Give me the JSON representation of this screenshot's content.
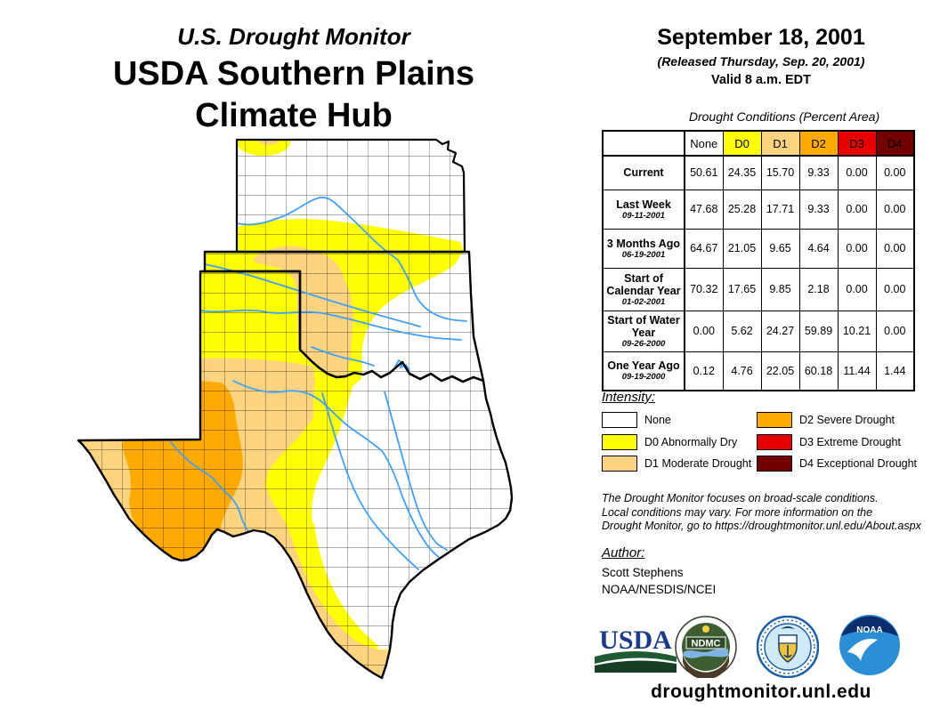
{
  "header": {
    "program_title": "U.S. Drought Monitor",
    "hub_title_line1": "USDA Southern Plains",
    "hub_title_line2": "Climate Hub",
    "date": "September 18, 2001",
    "released": "(Released Thursday, Sep. 20, 2001)",
    "valid": "Valid 8 a.m. EDT"
  },
  "table": {
    "title": "Drought Conditions (Percent Area)",
    "columns": [
      "None",
      "D0",
      "D1",
      "D2",
      "D3",
      "D4"
    ],
    "column_colors": [
      "#FFFFFF",
      "#FFFF00",
      "#FCD37F",
      "#FFAA00",
      "#E60000",
      "#730000"
    ],
    "rows": [
      {
        "label": "Current",
        "date": "",
        "values": [
          "50.61",
          "24.35",
          "15.70",
          "9.33",
          "0.00",
          "0.00"
        ]
      },
      {
        "label": "Last Week",
        "date": "09-11-2001",
        "values": [
          "47.68",
          "25.28",
          "17.71",
          "9.33",
          "0.00",
          "0.00"
        ]
      },
      {
        "label": "3 Months Ago",
        "date": "06-19-2001",
        "values": [
          "64.67",
          "21.05",
          "9.65",
          "4.64",
          "0.00",
          "0.00"
        ]
      },
      {
        "label": "Start of Calendar Year",
        "date": "01-02-2001",
        "values": [
          "70.32",
          "17.65",
          "9.85",
          "2.18",
          "0.00",
          "0.00"
        ]
      },
      {
        "label": "Start of Water Year",
        "date": "09-26-2000",
        "values": [
          "0.00",
          "5.62",
          "24.27",
          "59.89",
          "10.21",
          "0.00"
        ]
      },
      {
        "label": "One Year Ago",
        "date": "09-19-2000",
        "values": [
          "0.12",
          "4.76",
          "22.05",
          "60.18",
          "11.44",
          "1.44"
        ]
      }
    ]
  },
  "legend": {
    "title": "Intensity:",
    "items": [
      {
        "label": "None",
        "color": "#FFFFFF"
      },
      {
        "label": "D0 Abnormally Dry",
        "color": "#FFFF00"
      },
      {
        "label": "D1 Moderate Drought",
        "color": "#FCD37F"
      },
      {
        "label": "D2 Severe Drought",
        "color": "#FFAA00"
      },
      {
        "label": "D3 Extreme Drought",
        "color": "#E60000"
      },
      {
        "label": "D4 Exceptional Drought",
        "color": "#730000"
      }
    ]
  },
  "disclaimer": {
    "line1": "The Drought Monitor focuses on broad-scale conditions.",
    "line2": "Local conditions may vary. For more information on the",
    "line3": "Drought Monitor, go to https://droughtmonitor.unl.edu/About.aspx"
  },
  "author": {
    "title": "Author:",
    "name": "Scott Stephens",
    "org": "NOAA/NESDIS/NCEI"
  },
  "footer": {
    "url": "droughtmonitor.unl.edu"
  },
  "logos": [
    {
      "name": "usda-logo",
      "text": "USDA"
    },
    {
      "name": "ndmc-logo",
      "text": "NDMC"
    },
    {
      "name": "commerce-seal-logo",
      "text": ""
    },
    {
      "name": "noaa-logo",
      "text": "NOAA"
    }
  ],
  "map": {
    "colors": {
      "none": "#FFFFFF",
      "d0": "#FFFF00",
      "d1": "#FCD37F",
      "d2": "#FFAA00",
      "d3": "#E60000",
      "d4": "#730000",
      "river": "#3FA0FF",
      "county_line": "#000000",
      "state_line": "#000000"
    }
  }
}
